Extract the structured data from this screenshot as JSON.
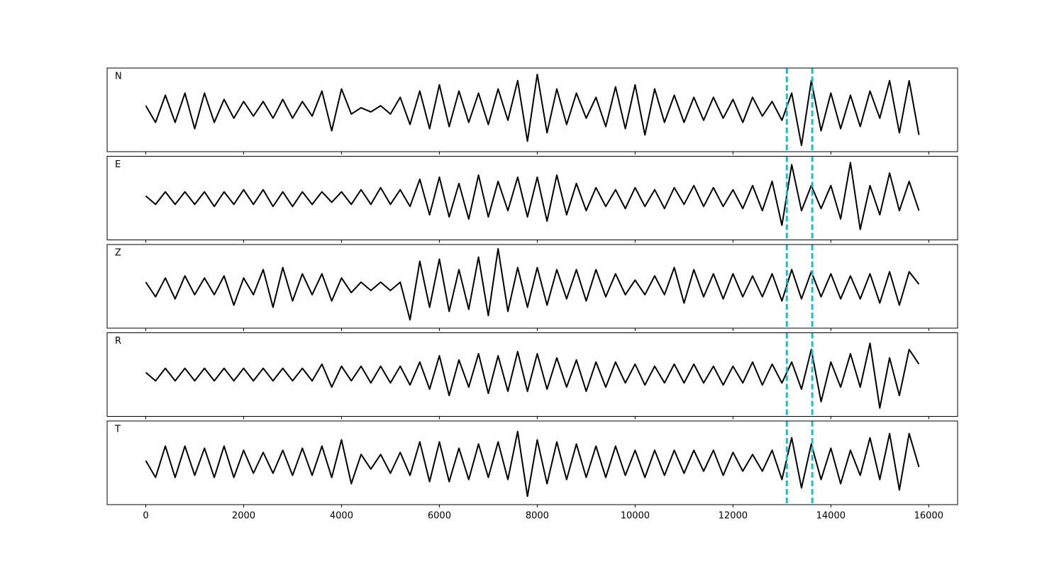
{
  "chart_data": {
    "type": "line",
    "x": [
      0,
      200,
      400,
      600,
      800,
      1000,
      1200,
      1400,
      1600,
      1800,
      2000,
      2200,
      2400,
      2600,
      2800,
      3000,
      3200,
      3400,
      3600,
      3800,
      4000,
      4200,
      4400,
      4600,
      4800,
      5000,
      5200,
      5400,
      5600,
      5800,
      6000,
      6200,
      6400,
      6600,
      6800,
      7000,
      7200,
      7400,
      7600,
      7800,
      8000,
      8200,
      8400,
      8600,
      8800,
      9000,
      9200,
      9400,
      9600,
      9800,
      10000,
      10200,
      10400,
      10600,
      10800,
      11000,
      11200,
      11400,
      11600,
      11800,
      12000,
      12200,
      12400,
      12600,
      12800,
      13000,
      13200,
      13400,
      13600,
      13800,
      14000,
      14200,
      14400,
      14600,
      14800,
      15000,
      15200,
      15400,
      15600,
      15800
    ],
    "series": [
      {
        "name": "N",
        "color": "#000000",
        "values": [
          0.1,
          -0.3,
          0.35,
          -0.3,
          0.4,
          -0.45,
          0.4,
          -0.3,
          0.25,
          -0.2,
          0.2,
          -0.15,
          0.2,
          -0.2,
          0.25,
          -0.2,
          0.2,
          -0.15,
          0.45,
          -0.5,
          0.5,
          -0.1,
          0.05,
          -0.05,
          0.1,
          -0.1,
          0.3,
          -0.35,
          0.45,
          -0.45,
          0.6,
          -0.4,
          0.45,
          -0.3,
          0.4,
          -0.35,
          0.5,
          -0.25,
          0.7,
          -0.75,
          0.85,
          -0.55,
          0.5,
          -0.35,
          0.4,
          -0.2,
          0.3,
          -0.4,
          0.55,
          -0.45,
          0.6,
          -0.6,
          0.5,
          -0.3,
          0.35,
          -0.3,
          0.3,
          -0.25,
          0.3,
          -0.2,
          0.25,
          -0.3,
          0.3,
          -0.15,
          0.2,
          -0.25,
          0.4,
          -0.85,
          0.7,
          -0.5,
          0.4,
          -0.45,
          0.35,
          -0.4,
          0.45,
          -0.2,
          0.7,
          -0.55,
          0.7,
          -0.6
        ]
      },
      {
        "name": "E",
        "color": "#000000",
        "values": [
          0.05,
          -0.15,
          0.15,
          -0.15,
          0.15,
          -0.15,
          0.15,
          -0.2,
          0.15,
          -0.15,
          0.2,
          -0.15,
          0.2,
          -0.2,
          0.15,
          -0.2,
          0.15,
          -0.15,
          0.15,
          -0.1,
          0.15,
          -0.15,
          0.2,
          -0.15,
          0.25,
          -0.15,
          0.2,
          -0.2,
          0.45,
          -0.4,
          0.5,
          -0.45,
          0.35,
          -0.5,
          0.55,
          -0.45,
          0.4,
          -0.3,
          0.5,
          -0.45,
          0.5,
          -0.55,
          0.55,
          -0.4,
          0.35,
          -0.3,
          0.25,
          -0.2,
          0.2,
          -0.25,
          0.25,
          -0.2,
          0.2,
          -0.25,
          0.25,
          -0.15,
          0.3,
          -0.2,
          0.25,
          -0.2,
          0.2,
          -0.25,
          0.3,
          -0.3,
          0.4,
          -0.65,
          0.8,
          -0.3,
          0.3,
          -0.25,
          0.3,
          -0.5,
          0.85,
          -0.75,
          0.3,
          -0.4,
          0.6,
          -0.3,
          0.4,
          -0.3
        ]
      },
      {
        "name": "Z",
        "color": "#000000",
        "values": [
          0.1,
          -0.25,
          0.2,
          -0.3,
          0.25,
          -0.2,
          0.2,
          -0.2,
          0.25,
          -0.45,
          0.2,
          -0.2,
          0.4,
          -0.5,
          0.45,
          -0.35,
          0.3,
          -0.2,
          0.3,
          -0.35,
          0.2,
          -0.15,
          0.1,
          -0.1,
          0.1,
          -0.1,
          0.1,
          -0.8,
          0.6,
          -0.5,
          0.65,
          -0.6,
          0.4,
          -0.55,
          0.7,
          -0.7,
          0.9,
          -0.6,
          0.45,
          -0.5,
          0.45,
          -0.45,
          0.4,
          -0.3,
          0.4,
          -0.35,
          0.4,
          -0.25,
          0.3,
          -0.2,
          0.15,
          -0.2,
          0.25,
          -0.2,
          0.45,
          -0.4,
          0.4,
          -0.25,
          0.3,
          -0.3,
          0.3,
          -0.25,
          0.25,
          -0.25,
          0.3,
          -0.35,
          0.4,
          -0.3,
          0.35,
          -0.25,
          0.3,
          -0.3,
          0.25,
          -0.3,
          0.3,
          -0.4,
          0.35,
          -0.45,
          0.35,
          0.05
        ]
      },
      {
        "name": "R",
        "color": "#000000",
        "values": [
          0.05,
          -0.15,
          0.15,
          -0.15,
          0.15,
          -0.15,
          0.15,
          -0.15,
          0.15,
          -0.15,
          0.15,
          -0.15,
          0.15,
          -0.15,
          0.15,
          -0.15,
          0.15,
          -0.15,
          0.25,
          -0.3,
          0.2,
          -0.15,
          0.2,
          -0.2,
          0.2,
          -0.2,
          0.2,
          -0.25,
          0.3,
          -0.35,
          0.45,
          -0.5,
          0.35,
          -0.3,
          0.5,
          -0.45,
          0.45,
          -0.4,
          0.55,
          -0.4,
          0.5,
          -0.35,
          0.4,
          -0.3,
          0.35,
          -0.4,
          0.3,
          -0.3,
          0.3,
          -0.2,
          0.25,
          -0.25,
          0.2,
          -0.2,
          0.25,
          -0.2,
          0.25,
          -0.2,
          0.2,
          -0.25,
          0.2,
          -0.2,
          0.3,
          -0.25,
          0.25,
          -0.2,
          0.3,
          -0.35,
          0.6,
          -0.65,
          0.3,
          -0.3,
          0.5,
          -0.3,
          0.75,
          -0.8,
          0.4,
          -0.5,
          0.6,
          0.25
        ]
      },
      {
        "name": "T",
        "color": "#000000",
        "values": [
          0.05,
          -0.35,
          0.4,
          -0.35,
          0.4,
          -0.3,
          0.35,
          -0.35,
          0.4,
          -0.35,
          0.3,
          -0.25,
          0.25,
          -0.25,
          0.3,
          -0.3,
          0.35,
          -0.3,
          0.4,
          -0.35,
          0.55,
          -0.5,
          0.2,
          -0.15,
          0.2,
          -0.25,
          0.25,
          -0.3,
          0.5,
          -0.45,
          0.5,
          -0.45,
          0.35,
          -0.4,
          0.45,
          -0.35,
          0.5,
          -0.4,
          0.75,
          -0.8,
          0.55,
          -0.5,
          0.5,
          -0.4,
          0.45,
          -0.35,
          0.4,
          -0.35,
          0.4,
          -0.3,
          0.3,
          -0.35,
          0.3,
          -0.3,
          0.3,
          -0.25,
          0.3,
          -0.2,
          0.3,
          -0.3,
          0.25,
          -0.2,
          0.2,
          -0.2,
          0.3,
          -0.4,
          0.6,
          -0.6,
          0.45,
          -0.4,
          0.35,
          -0.5,
          0.3,
          -0.3,
          0.6,
          -0.4,
          0.7,
          -0.65,
          0.7,
          -0.1
        ]
      }
    ],
    "xlim": [
      -790,
      16590
    ],
    "ylim": [
      -1,
      1
    ],
    "xticks": [
      0,
      2000,
      4000,
      6000,
      8000,
      10000,
      12000,
      14000,
      16000
    ],
    "vlines": [
      13100,
      13620
    ],
    "vline_color": "#17becf"
  }
}
